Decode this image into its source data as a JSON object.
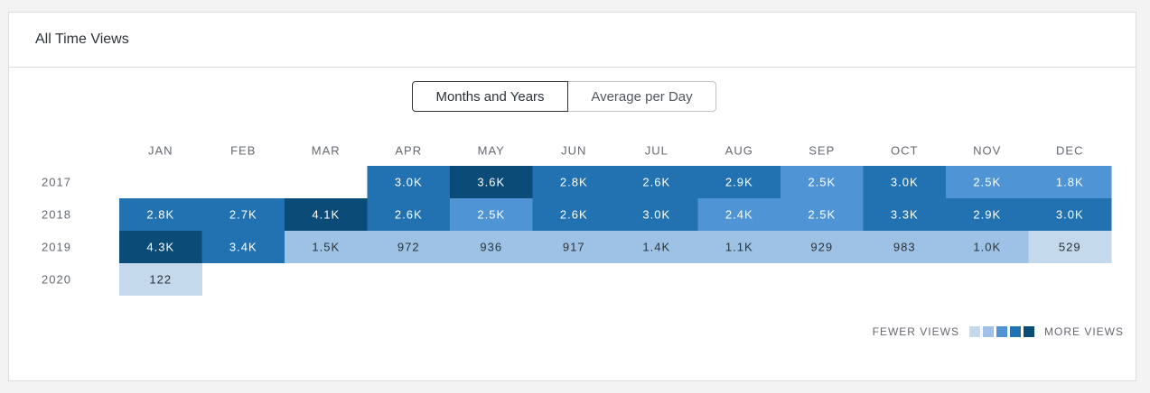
{
  "card": {
    "title": "All Time Views"
  },
  "toggle": {
    "options": [
      "Months and Years",
      "Average per Day"
    ],
    "selected": "Months and Years"
  },
  "legend": {
    "fewer_label": "FEWER VIEWS",
    "more_label": "MORE VIEWS",
    "colors": [
      "#c5d9ed",
      "#9ec2e6",
      "#4f94d4",
      "#2271b1",
      "#0a4b78"
    ]
  },
  "chart_data": {
    "type": "heatmap",
    "title": "",
    "x_categories": [
      "JAN",
      "FEB",
      "MAR",
      "APR",
      "MAY",
      "JUN",
      "JUL",
      "AUG",
      "SEP",
      "OCT",
      "NOV",
      "DEC"
    ],
    "y_categories": [
      "2017",
      "2018",
      "2019",
      "2020"
    ],
    "values": [
      [
        null,
        null,
        null,
        3000,
        3600,
        2800,
        2600,
        2900,
        2500,
        3000,
        2500,
        1800
      ],
      [
        2800,
        2700,
        4100,
        2600,
        2500,
        2600,
        3000,
        2400,
        2500,
        3300,
        2900,
        3000
      ],
      [
        4300,
        3400,
        1500,
        972,
        936,
        917,
        1400,
        1100,
        929,
        983,
        1000,
        529
      ],
      [
        122,
        null,
        null,
        null,
        null,
        null,
        null,
        null,
        null,
        null,
        null,
        null
      ]
    ],
    "labels": [
      [
        null,
        null,
        null,
        "3.0K",
        "3.6K",
        "2.8K",
        "2.6K",
        "2.9K",
        "2.5K",
        "3.0K",
        "2.5K",
        "1.8K"
      ],
      [
        "2.8K",
        "2.7K",
        "4.1K",
        "2.6K",
        "2.5K",
        "2.6K",
        "3.0K",
        "2.4K",
        "2.5K",
        "3.3K",
        "2.9K",
        "3.0K"
      ],
      [
        "4.3K",
        "3.4K",
        "1.5K",
        "972",
        "936",
        "917",
        "1.4K",
        "1.1K",
        "929",
        "983",
        "1.0K",
        "529"
      ],
      [
        "122",
        null,
        null,
        null,
        null,
        null,
        null,
        null,
        null,
        null,
        null,
        null
      ]
    ],
    "color_levels": [
      [
        null,
        null,
        null,
        3,
        4,
        3,
        3,
        3,
        2,
        3,
        2,
        2
      ],
      [
        3,
        3,
        4,
        3,
        2,
        3,
        3,
        2,
        2,
        3,
        3,
        3
      ],
      [
        4,
        3,
        1,
        1,
        1,
        1,
        1,
        1,
        1,
        1,
        1,
        0
      ],
      [
        0,
        null,
        null,
        null,
        null,
        null,
        null,
        null,
        null,
        null,
        null,
        null
      ]
    ],
    "light_text_color": "#ffffff",
    "dark_text_color": "#2c3338"
  }
}
